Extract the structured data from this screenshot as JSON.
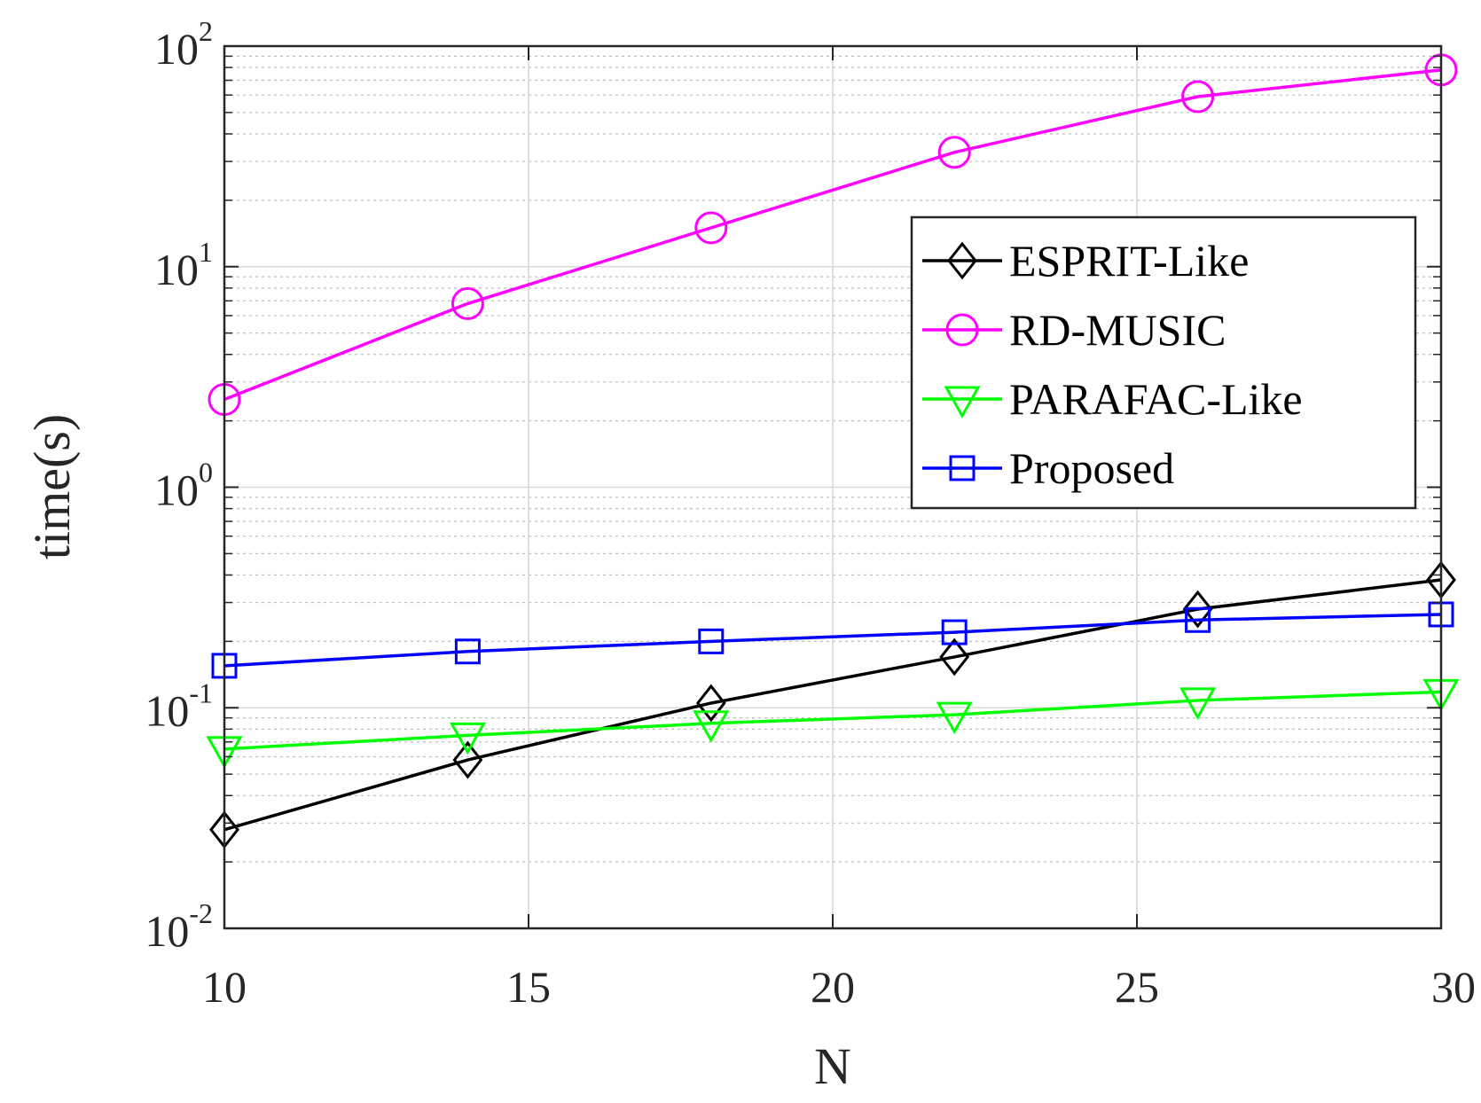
{
  "chart_data": {
    "type": "line",
    "xlabel": "N",
    "ylabel": "time(s)",
    "yscale": "log",
    "xlim": [
      10,
      30
    ],
    "ylim": [
      0.01,
      100
    ],
    "x_ticks": [
      10,
      15,
      20,
      25,
      30
    ],
    "y_ticks": [
      {
        "base": "10",
        "exp": "-2",
        "value": 0.01
      },
      {
        "base": "10",
        "exp": "-1",
        "value": 0.1
      },
      {
        "base": "10",
        "exp": "0",
        "value": 1
      },
      {
        "base": "10",
        "exp": "1",
        "value": 10
      },
      {
        "base": "10",
        "exp": "2",
        "value": 100
      }
    ],
    "grid": true,
    "legend_position": "top-right",
    "x": [
      10,
      14,
      18,
      22,
      26,
      30
    ],
    "series": [
      {
        "name": "ESPRIT-Like",
        "color": "#000000",
        "marker": "diamond",
        "values": [
          0.028,
          0.058,
          0.105,
          0.17,
          0.28,
          0.38
        ]
      },
      {
        "name": "RD-MUSIC",
        "color": "#ff00ff",
        "marker": "circle",
        "values": [
          2.5,
          6.8,
          15,
          33,
          59,
          78
        ]
      },
      {
        "name": "PARAFAC-Like",
        "color": "#00ff00",
        "marker": "triangle-down",
        "values": [
          0.065,
          0.075,
          0.085,
          0.093,
          0.108,
          0.118
        ]
      },
      {
        "name": "Proposed",
        "color": "#0000ff",
        "marker": "square",
        "values": [
          0.155,
          0.18,
          0.2,
          0.22,
          0.25,
          0.265
        ]
      }
    ]
  }
}
